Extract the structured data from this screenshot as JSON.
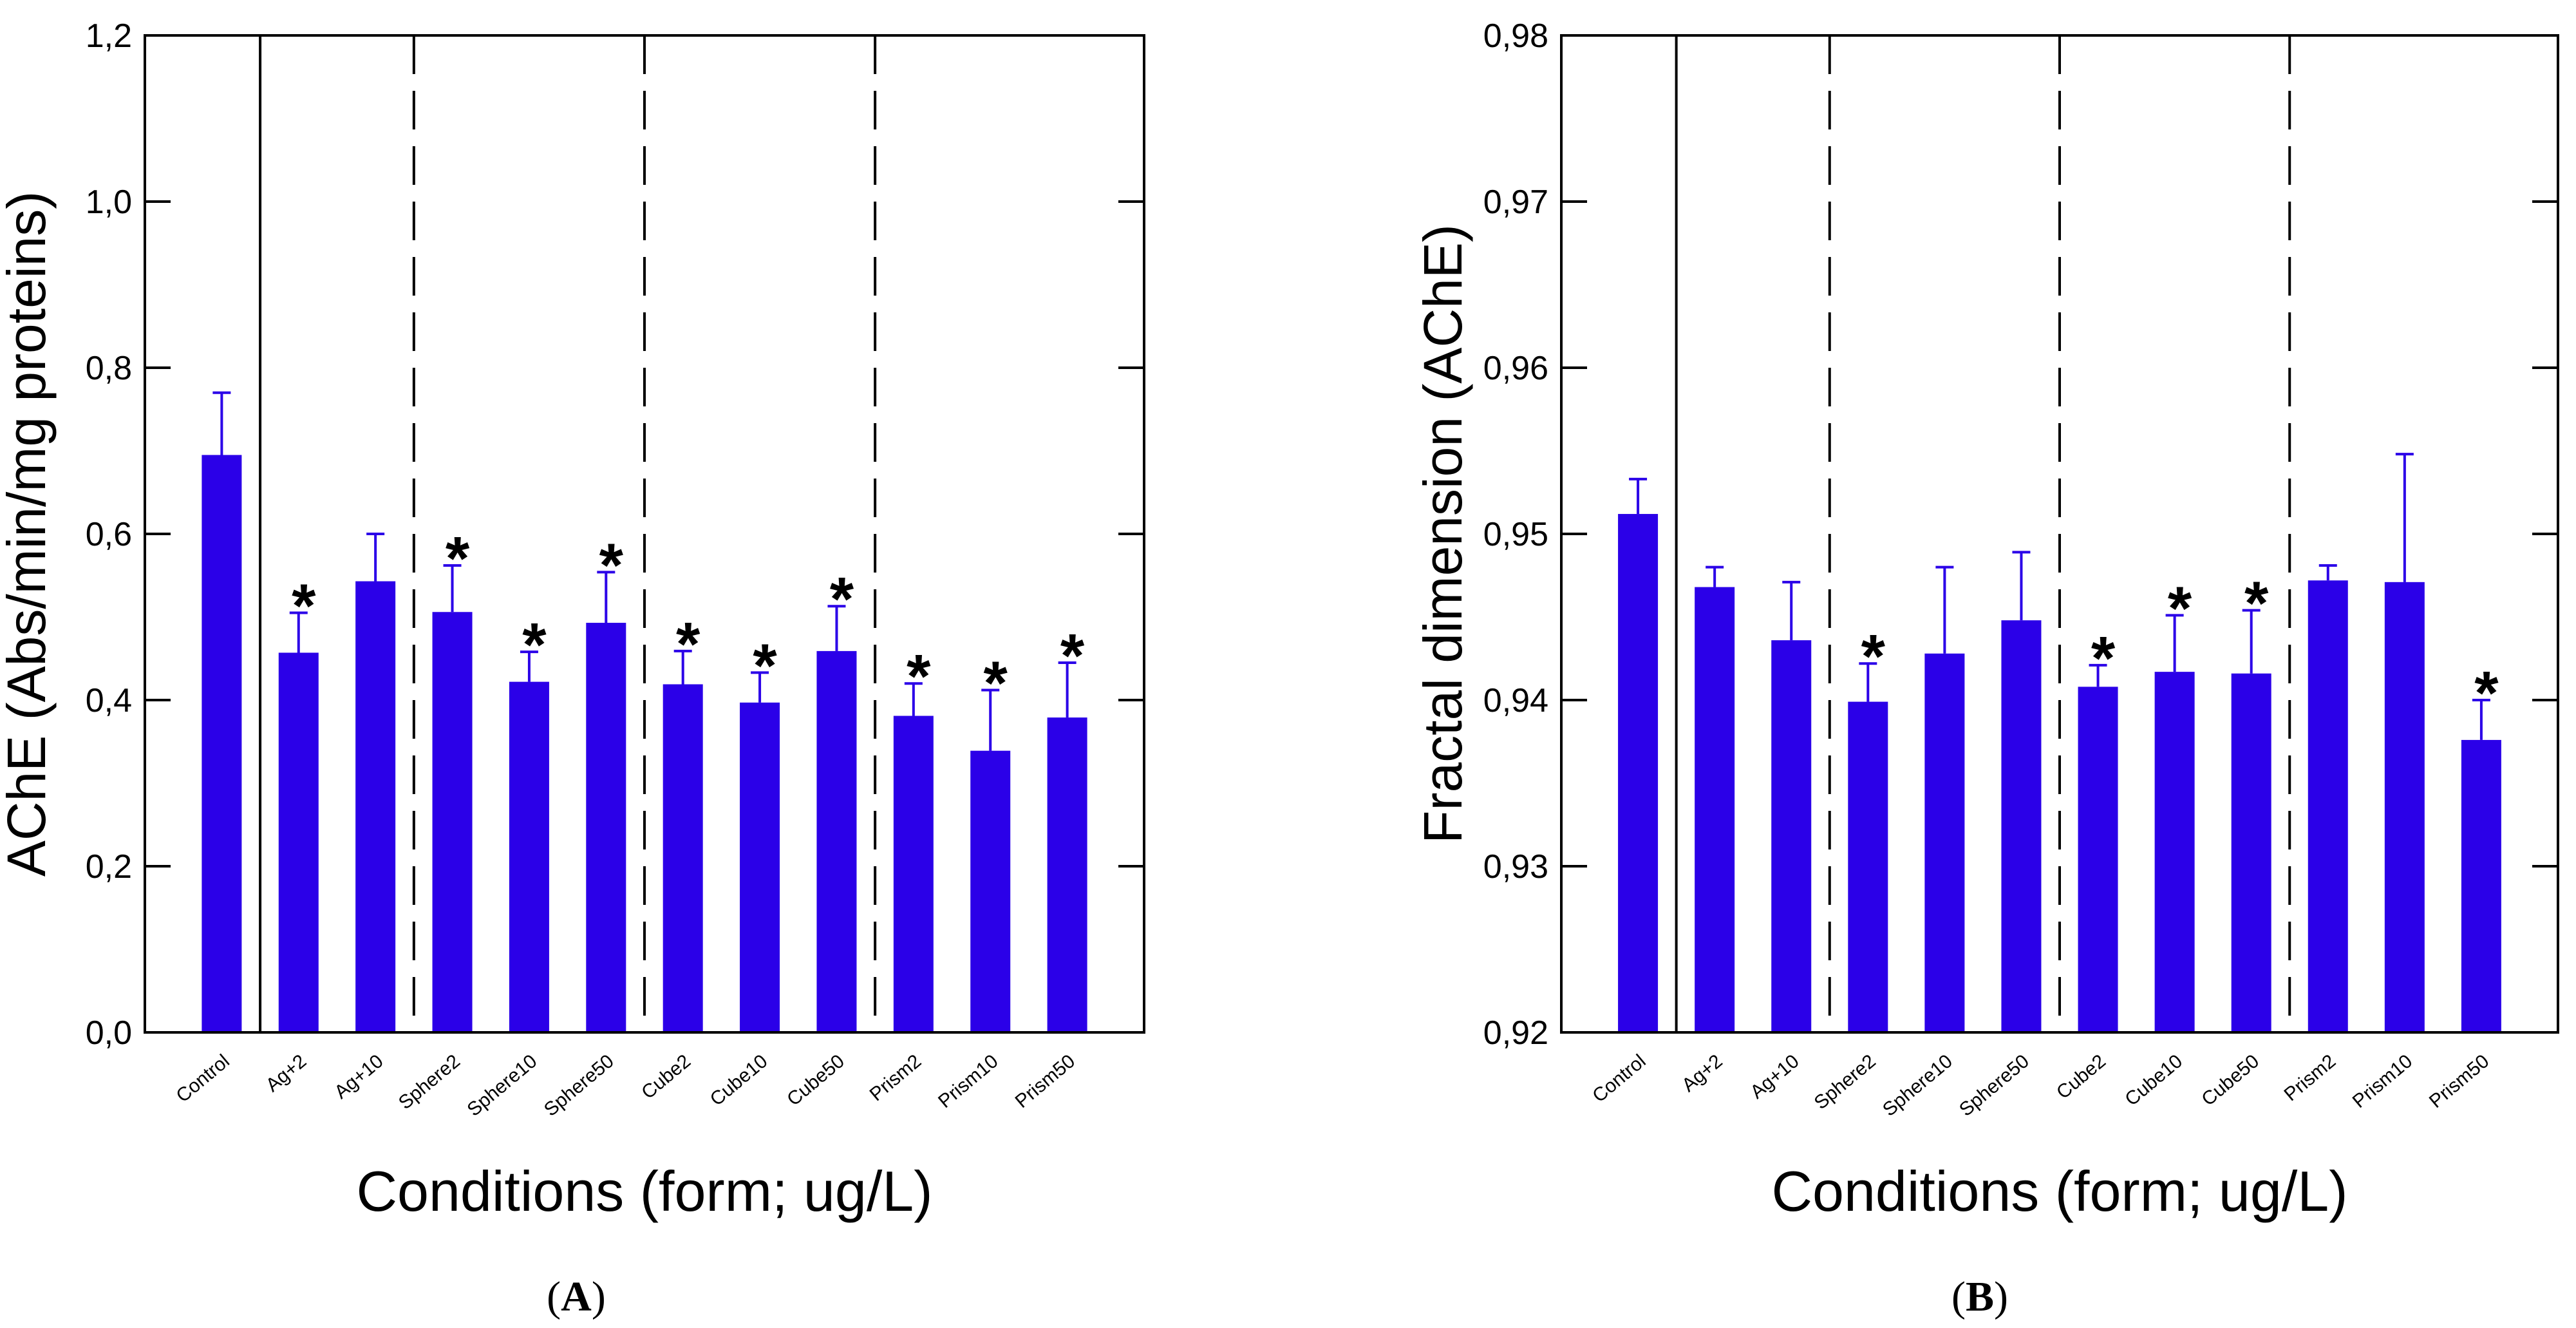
{
  "chart_data": [
    {
      "type": "bar",
      "panel_label": "A",
      "categories": [
        "Control",
        "Ag+2",
        "Ag+10",
        "Sphere2",
        "Sphere10",
        "Sphere50",
        "Cube2",
        "Cube10",
        "Cube50",
        "Prism2",
        "Prism10",
        "Prism50"
      ],
      "values": [
        0.695,
        0.457,
        0.543,
        0.506,
        0.422,
        0.493,
        0.419,
        0.397,
        0.459,
        0.381,
        0.339,
        0.379
      ],
      "errors": [
        0.075,
        0.048,
        0.057,
        0.056,
        0.036,
        0.061,
        0.04,
        0.036,
        0.054,
        0.039,
        0.073,
        0.066
      ],
      "significant": [
        false,
        true,
        false,
        true,
        true,
        true,
        true,
        true,
        true,
        true,
        true,
        true
      ],
      "significance_marker": "*",
      "xlabel": "Conditions (form; ug/L)",
      "ylabel": "AChE (Abs/min/mg proteins)",
      "ylim": [
        0,
        1.2
      ],
      "yticks": [
        0.0,
        0.2,
        0.4,
        0.6,
        0.8,
        1.0,
        1.2
      ],
      "ytick_labels": [
        "0,0",
        "0,2",
        "0,4",
        "0,6",
        "0,8",
        "1,0",
        "1,2"
      ],
      "bar_color": "#2b00e8",
      "group_separators": [
        {
          "after_index": 0,
          "style": "solid"
        },
        {
          "after_index": 2,
          "style": "dashed"
        },
        {
          "after_index": 5,
          "style": "dashed"
        },
        {
          "after_index": 8,
          "style": "dashed"
        }
      ]
    },
    {
      "type": "bar",
      "panel_label": "B",
      "categories": [
        "Control",
        "Ag+2",
        "Ag+10",
        "Sphere2",
        "Sphere10",
        "Sphere50",
        "Cube2",
        "Cube10",
        "Cube50",
        "Prism2",
        "Prism10",
        "Prism50"
      ],
      "values": [
        0.9512,
        0.9468,
        0.9436,
        0.9399,
        0.9428,
        0.9448,
        0.9408,
        0.9417,
        0.9416,
        0.9472,
        0.9471,
        0.9376
      ],
      "errors": [
        0.0021,
        0.0012,
        0.0035,
        0.0023,
        0.0052,
        0.0041,
        0.0013,
        0.0034,
        0.0038,
        0.0009,
        0.0077,
        0.0024
      ],
      "significant": [
        false,
        false,
        false,
        true,
        false,
        false,
        true,
        true,
        true,
        false,
        false,
        true
      ],
      "significance_marker": "*",
      "xlabel": "Conditions (form; ug/L)",
      "ylabel": "Fractal dimension (AChE)",
      "ylim": [
        0.92,
        0.98
      ],
      "yticks": [
        0.92,
        0.93,
        0.94,
        0.95,
        0.96,
        0.97,
        0.98
      ],
      "ytick_labels": [
        "0,92",
        "0,93",
        "0,94",
        "0,95",
        "0,96",
        "0,97",
        "0,98"
      ],
      "bar_color": "#2b00e8",
      "group_separators": [
        {
          "after_index": 0,
          "style": "solid"
        },
        {
          "after_index": 2,
          "style": "dashed"
        },
        {
          "after_index": 5,
          "style": "dashed"
        },
        {
          "after_index": 8,
          "style": "dashed"
        }
      ]
    }
  ]
}
